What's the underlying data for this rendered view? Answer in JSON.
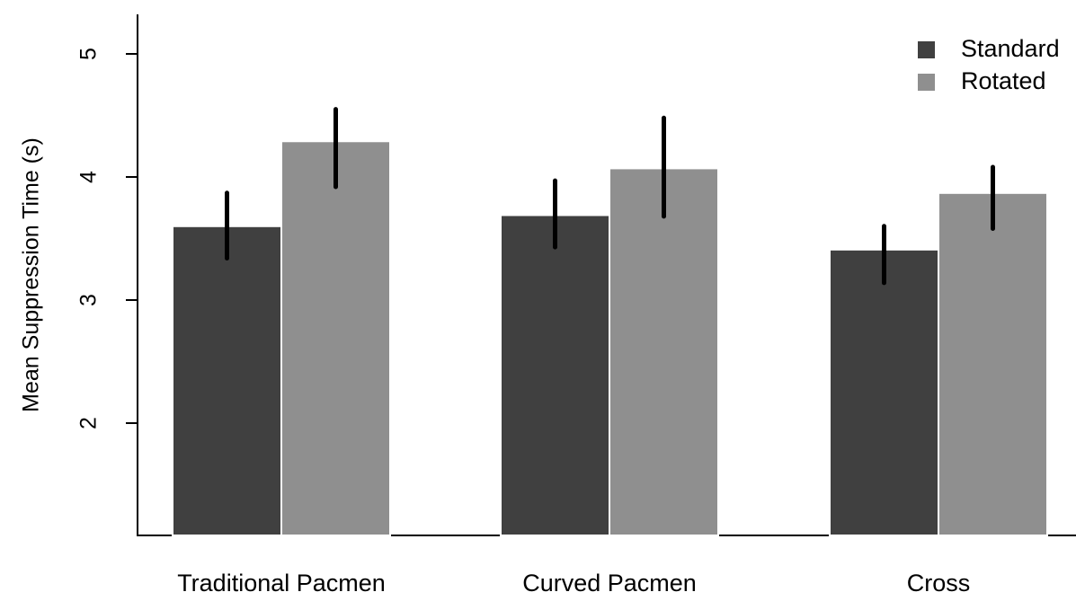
{
  "chart_data": {
    "type": "bar",
    "title": "",
    "xlabel": "",
    "ylabel": "Mean Suppression Time (s)",
    "ylim": [
      1.1,
      5.4
    ],
    "yticks": [
      2,
      3,
      4,
      5
    ],
    "ytick_labels": [
      "2",
      "3",
      "4",
      "5"
    ],
    "categories": [
      "Traditional Pacmen",
      "Curved Pacmen",
      "Cross"
    ],
    "series": [
      {
        "name": "Standard",
        "color": "#404040",
        "values": [
          3.6,
          3.69,
          3.41
        ],
        "error_low": [
          3.34,
          3.43,
          3.14
        ],
        "error_high": [
          3.87,
          3.97,
          3.6
        ]
      },
      {
        "name": "Rotated",
        "color": "#8f8f8f",
        "values": [
          4.29,
          4.07,
          3.87
        ],
        "error_low": [
          3.92,
          3.68,
          3.58
        ],
        "error_high": [
          4.55,
          4.48,
          4.08
        ]
      }
    ],
    "legend_position": "top-right",
    "grid": false
  }
}
